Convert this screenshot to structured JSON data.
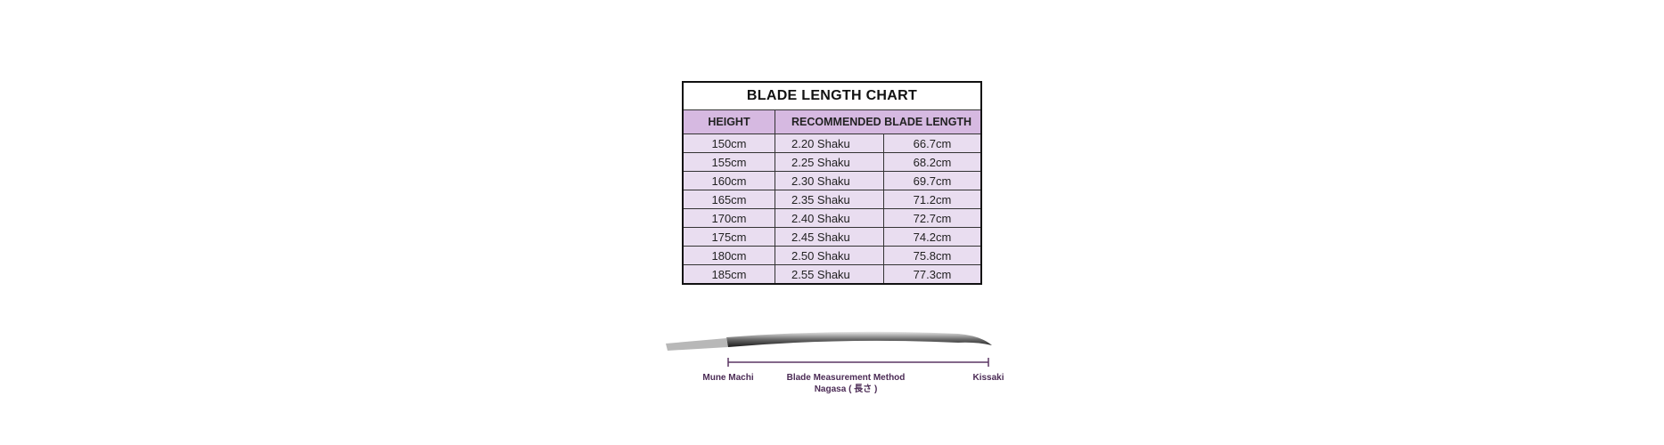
{
  "table": {
    "title": "BLADE LENGTH CHART",
    "headers": [
      "HEIGHT",
      "RECOMMENDED BLADE LENGTH"
    ],
    "rows": [
      [
        "150cm",
        "2.20 Shaku",
        "66.7cm"
      ],
      [
        "155cm",
        "2.25 Shaku",
        "68.2cm"
      ],
      [
        "160cm",
        "2.30 Shaku",
        "69.7cm"
      ],
      [
        "165cm",
        "2.35 Shaku",
        "71.2cm"
      ],
      [
        "170cm",
        "2.40 Shaku",
        "72.7cm"
      ],
      [
        "175cm",
        "2.45 Shaku",
        "74.2cm"
      ],
      [
        "180cm",
        "2.50 Shaku",
        "75.8cm"
      ],
      [
        "185cm",
        "2.55 Shaku",
        "77.3cm"
      ]
    ]
  },
  "diagram": {
    "left_label": "Mune Machi",
    "center_label": "Blade Measurement Method",
    "center_sublabel": "Nagasa ( 長さ )",
    "right_label": "Kissaki",
    "label_color": "#4b2b55"
  },
  "colors": {
    "header_bg": "#d6b9e1",
    "row_bg": "#e9ddf0"
  }
}
